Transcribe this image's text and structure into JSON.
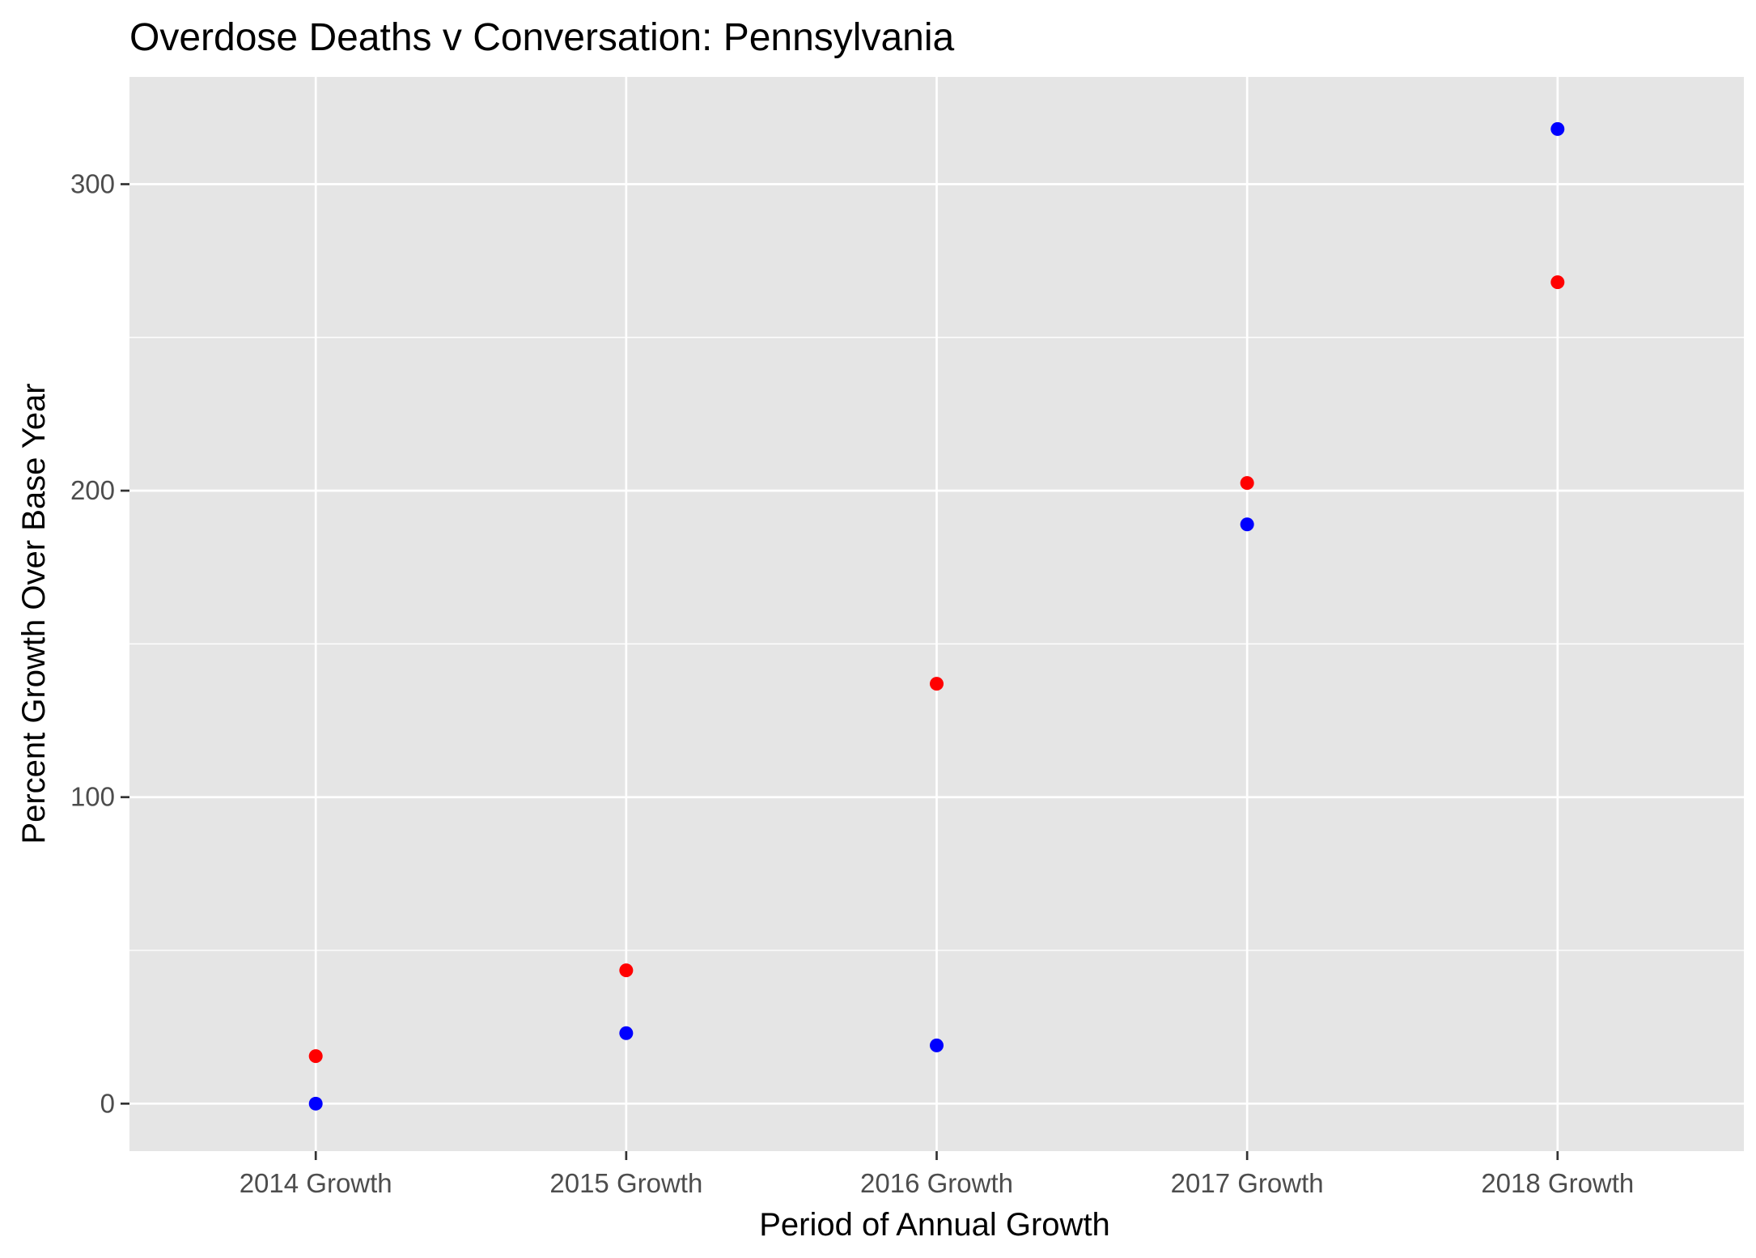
{
  "chart_data": {
    "type": "scatter",
    "title": "Overdose Deaths v Conversation: Pennsylvania",
    "xlabel": "Period of Annual Growth",
    "ylabel": "Percent Growth Over Base Year",
    "categories": [
      "2014 Growth",
      "2015 Growth",
      "2016 Growth",
      "2017 Growth",
      "2018 Growth"
    ],
    "ylim": [
      -15.5,
      335
    ],
    "yticks": [
      0,
      100,
      200,
      300
    ],
    "grid": true,
    "legend": "none",
    "series": [
      {
        "color": "#ff0000",
        "values": [
          15.5,
          43.5,
          137,
          202.5,
          268
        ]
      },
      {
        "color": "#0000ff",
        "values": [
          0,
          23,
          19,
          189,
          318
        ]
      }
    ]
  }
}
